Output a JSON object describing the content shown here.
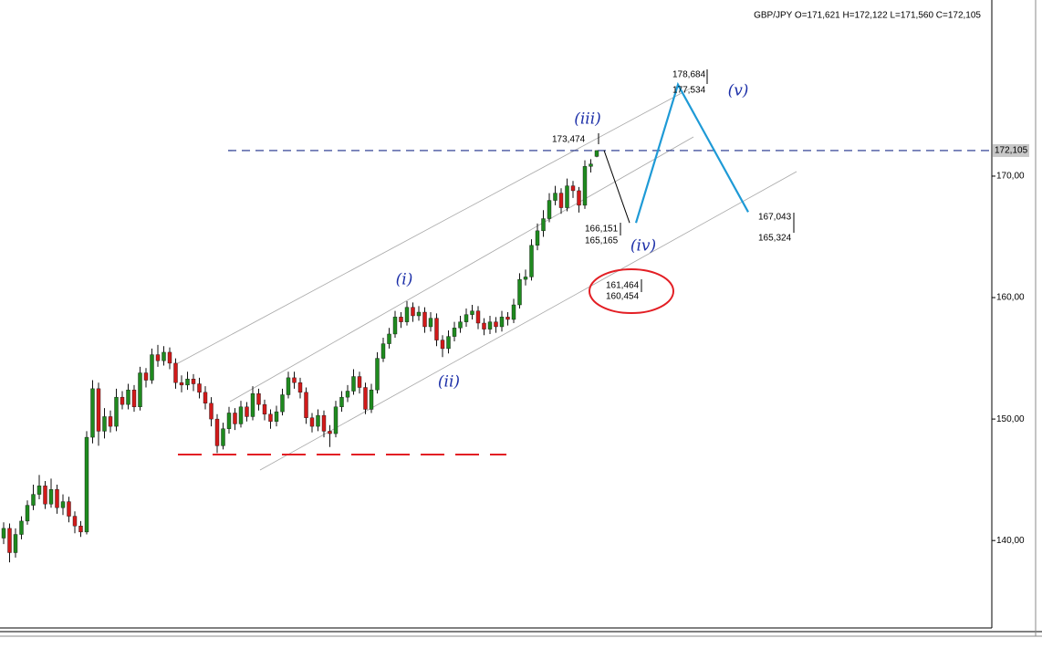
{
  "chart_data": {
    "type": "candlestick",
    "title": "GBP/JPY O=171,621 H=172,122 L=171,560 C=172,105",
    "open": [
      140.2,
      141.0,
      139.0,
      140.5,
      141.6,
      142.9,
      143.8,
      144.5,
      143.0,
      144.2,
      142.7,
      143.2,
      142.0,
      141.2,
      140.7,
      148.5,
      152.5,
      149.0,
      150.2,
      149.4,
      151.8,
      151.2,
      152.4,
      151.0,
      153.8,
      153.2,
      155.3,
      154.8,
      155.5,
      154.6,
      153.0,
      152.8,
      153.3,
      152.9,
      152.2,
      151.3,
      150.0,
      147.8,
      149.2,
      150.5,
      149.6,
      151.0,
      150.2,
      152.1,
      151.2,
      150.4,
      149.8,
      150.6,
      152.0,
      153.4,
      153.0,
      152.2,
      150.1,
      149.4,
      150.3,
      149.0,
      148.8,
      151.0,
      151.8,
      152.3,
      153.5,
      152.6,
      150.8,
      152.4,
      155.0,
      156.2,
      157.0,
      158.4,
      158.0,
      159.2,
      158.5,
      158.8,
      157.6,
      158.3,
      156.5,
      155.8,
      156.8,
      157.5,
      158.0,
      158.6,
      158.9,
      157.9,
      157.4,
      158.0,
      157.6,
      158.4,
      158.2,
      159.4,
      161.5,
      161.7,
      164.3,
      165.5,
      166.5,
      168.0,
      168.6,
      167.4,
      169.2,
      168.8,
      167.6,
      170.8,
      171.621
    ],
    "high": [
      141.5,
      141.4,
      141.0,
      142.0,
      143.3,
      144.6,
      145.4,
      144.9,
      145.1,
      144.6,
      143.8,
      143.6,
      142.4,
      141.6,
      149.0,
      153.2,
      153.0,
      150.9,
      150.7,
      152.5,
      152.3,
      152.9,
      152.8,
      154.3,
      154.2,
      155.8,
      156.1,
      156.0,
      155.9,
      155.0,
      153.6,
      153.9,
      153.7,
      153.4,
      152.7,
      151.8,
      150.4,
      149.7,
      151.0,
      150.9,
      151.5,
      151.4,
      152.7,
      152.5,
      151.6,
      150.8,
      151.1,
      152.5,
      153.9,
      153.9,
      153.4,
      152.6,
      150.5,
      150.8,
      150.7,
      149.5,
      151.5,
      152.3,
      152.8,
      154.1,
      153.9,
      153.0,
      152.9,
      155.5,
      156.7,
      157.5,
      158.9,
      158.8,
      159.7,
      159.6,
      159.3,
      159.2,
      158.8,
      158.7,
      156.9,
      157.3,
      158.0,
      158.5,
      159.1,
      159.4,
      159.3,
      158.3,
      158.5,
      158.4,
      158.9,
      158.8,
      159.9,
      162.0,
      162.3,
      164.8,
      166.1,
      167.2,
      168.6,
      169.2,
      169.0,
      169.8,
      169.6,
      169.1,
      171.3,
      171.4,
      172.122
    ],
    "low": [
      139.7,
      138.2,
      138.6,
      140.1,
      141.3,
      142.5,
      143.4,
      142.6,
      142.7,
      142.2,
      142.1,
      141.5,
      140.6,
      140.3,
      140.5,
      148.0,
      147.8,
      148.4,
      148.9,
      149.0,
      150.8,
      150.8,
      150.6,
      150.7,
      152.6,
      152.9,
      154.3,
      154.4,
      154.1,
      152.5,
      152.2,
      152.4,
      152.3,
      151.7,
      150.8,
      149.4,
      147.2,
      147.5,
      148.8,
      149.1,
      149.3,
      149.8,
      149.9,
      150.7,
      149.9,
      149.2,
      149.4,
      150.3,
      151.7,
      152.5,
      151.7,
      149.6,
      148.9,
      149.0,
      148.5,
      147.7,
      148.5,
      150.6,
      151.4,
      152.0,
      152.1,
      150.4,
      150.5,
      152.1,
      154.7,
      155.8,
      156.7,
      157.5,
      157.7,
      158.0,
      158.1,
      157.1,
      157.2,
      156.0,
      155.1,
      155.4,
      156.4,
      157.1,
      157.6,
      158.2,
      157.4,
      156.9,
      157.0,
      157.1,
      157.2,
      157.7,
      157.9,
      159.1,
      161.0,
      161.4,
      163.9,
      165.0,
      166.2,
      167.6,
      166.9,
      167.1,
      168.2,
      167.0,
      167.3,
      170.3,
      171.56
    ],
    "close": [
      141.0,
      139.0,
      140.5,
      141.6,
      142.9,
      143.8,
      144.5,
      143.0,
      144.2,
      142.7,
      143.2,
      142.0,
      141.2,
      140.7,
      148.5,
      152.5,
      149.0,
      150.2,
      149.4,
      151.8,
      151.2,
      152.4,
      151.0,
      153.8,
      153.2,
      155.3,
      154.8,
      155.5,
      154.6,
      153.0,
      152.8,
      153.3,
      152.9,
      152.2,
      151.3,
      150.0,
      147.8,
      149.2,
      150.5,
      149.6,
      151.0,
      150.2,
      152.1,
      151.2,
      150.4,
      149.8,
      150.6,
      152.0,
      153.4,
      153.0,
      152.2,
      150.1,
      149.4,
      150.3,
      149.0,
      148.8,
      151.0,
      151.8,
      152.3,
      153.5,
      152.6,
      150.8,
      152.4,
      155.0,
      156.2,
      157.0,
      158.4,
      158.0,
      159.2,
      158.5,
      158.8,
      157.6,
      158.3,
      156.5,
      155.8,
      156.8,
      157.5,
      158.0,
      158.6,
      158.9,
      157.9,
      157.4,
      158.0,
      157.6,
      158.4,
      158.2,
      159.4,
      161.5,
      161.7,
      164.3,
      165.5,
      166.5,
      168.0,
      168.6,
      167.4,
      169.2,
      168.8,
      167.6,
      170.8,
      171.0,
      172.105
    ],
    "up_color": "#1f8a1f",
    "down_color": "#d11a1a",
    "ylim": [
      132.8,
      184.5
    ],
    "yticks": [
      {
        "value": 140,
        "label": "140,00"
      },
      {
        "value": 150,
        "label": "150,00"
      },
      {
        "value": 160,
        "label": "160,00"
      },
      {
        "value": 170,
        "label": "170,00"
      }
    ],
    "current_price": {
      "value": 172.105,
      "label": "172,105"
    },
    "current_line_color": "#1c2f8a",
    "projection_black": {
      "values": [
        172.122,
        166.151
      ],
      "color": "#000000"
    },
    "projection_blue": {
      "values": [
        166.151,
        177.534,
        167.043
      ],
      "color": "#1e9ad6"
    },
    "price_labels": [
      "173,474",
      "166,151",
      "165,165",
      "178,684",
      "177,534",
      "167,043",
      "165,324",
      "161,464",
      "160,454"
    ],
    "wave_labels": [
      "(i)",
      "(ii)",
      "(iii)",
      "(iv)",
      "(v)"
    ]
  }
}
